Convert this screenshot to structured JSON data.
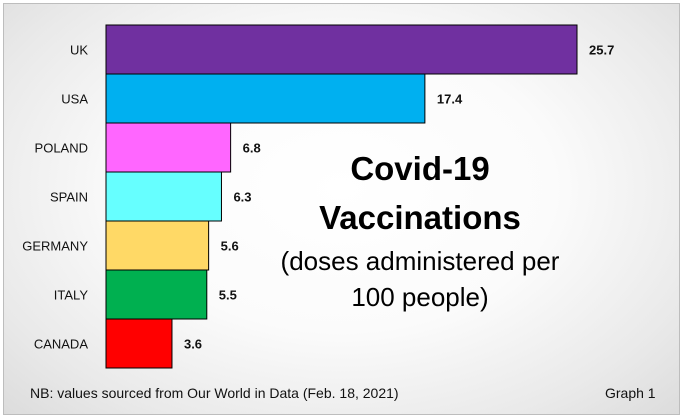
{
  "chart_data": {
    "type": "bar",
    "orientation": "horizontal",
    "categories": [
      "UK",
      "USA",
      "POLAND",
      "SPAIN",
      "GERMANY",
      "ITALY",
      "CANADA"
    ],
    "values": [
      25.7,
      17.4,
      6.8,
      6.3,
      5.6,
      5.5,
      3.6
    ],
    "value_labels": [
      "25.7",
      "17.4",
      "6.8",
      "6.3",
      "5.6",
      "5.5",
      "3.6"
    ],
    "colors": [
      "#7030a0",
      "#00b0f0",
      "#ff66ff",
      "#66ffff",
      "#ffd966",
      "#00b050",
      "#ff0000"
    ],
    "title_lines": [
      "Covid-19",
      "Vaccinations"
    ],
    "subtitle_lines": [
      "(doses administered per",
      "100 people)"
    ],
    "xlim": [
      0,
      25.7
    ],
    "grid": false,
    "legend": "none"
  },
  "footnote": "NB: values sourced from Our World in Data (Feb. 18, 2021)",
  "graph_label": "Graph 1"
}
